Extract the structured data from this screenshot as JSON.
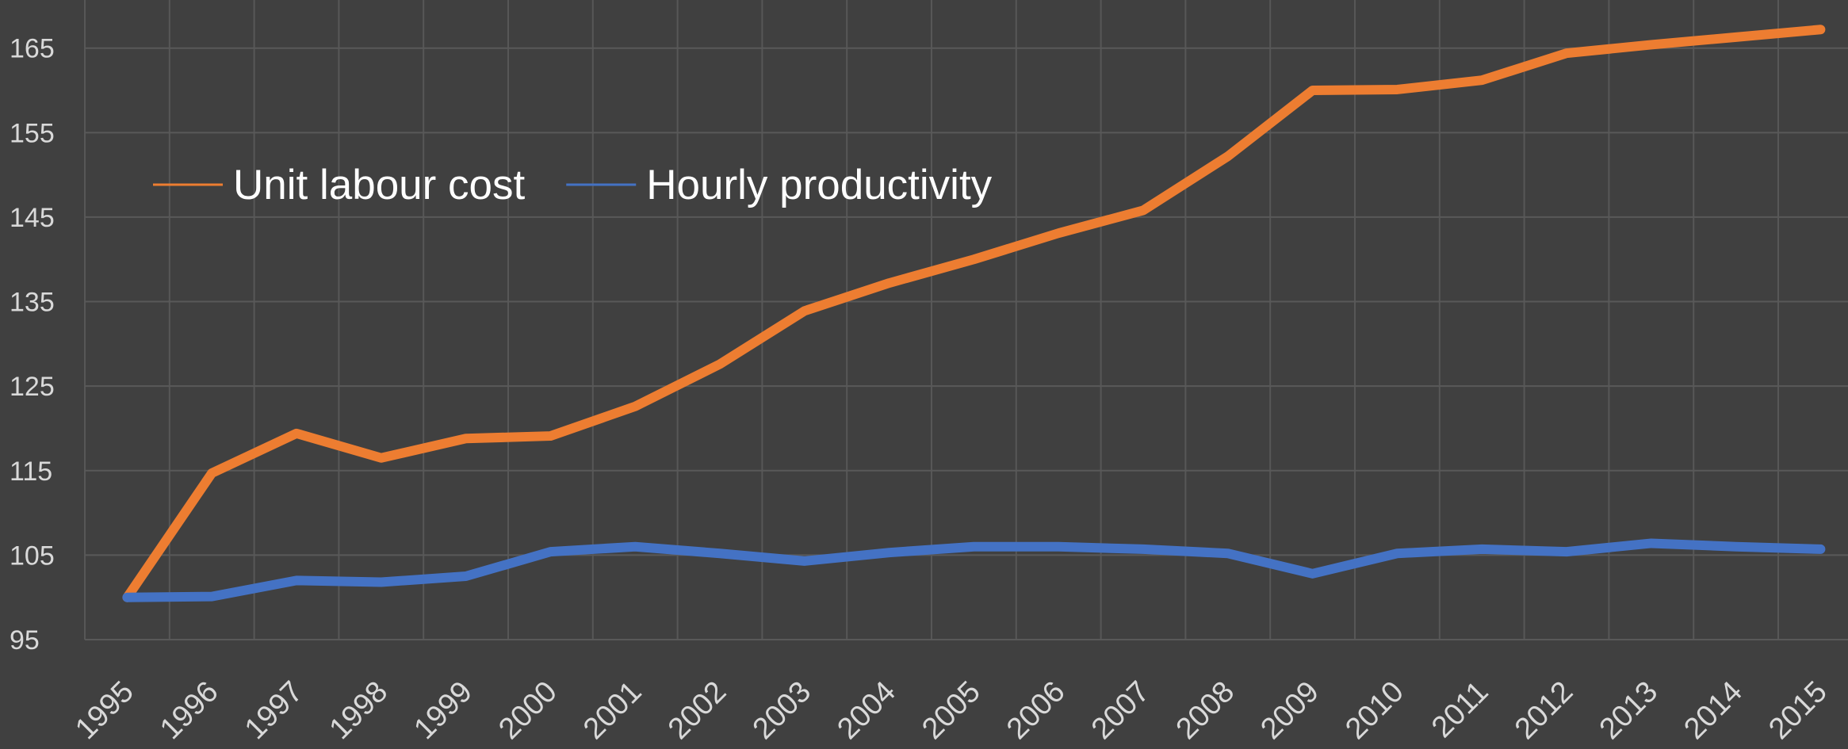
{
  "chart_data": {
    "type": "line",
    "categories": [
      "1995",
      "1996",
      "1997",
      "1998",
      "1999",
      "2000",
      "2001",
      "2002",
      "2003",
      "2004",
      "2005",
      "2006",
      "2007",
      "2008",
      "2009",
      "2010",
      "2011",
      "2012",
      "2013",
      "2014",
      "2015"
    ],
    "series": [
      {
        "name": "Unit labour cost",
        "color": "#ed7d31",
        "values": [
          100,
          114.7,
          119.4,
          116.5,
          118.8,
          119.1,
          122.6,
          127.6,
          133.9,
          137.2,
          140,
          143.1,
          145.8,
          152.2,
          160,
          160.1,
          161.2,
          164.4,
          165.4,
          166.3,
          167.2
        ]
      },
      {
        "name": "Hourly productivity",
        "color": "#4472c4",
        "values": [
          100,
          100.1,
          102,
          101.8,
          102.5,
          105.4,
          106,
          105.2,
          104.3,
          105.3,
          106,
          106,
          105.7,
          105.2,
          102.8,
          105.2,
          105.7,
          105.4,
          106.4,
          106,
          105.7
        ]
      }
    ],
    "ylim": [
      95,
      170
    ],
    "yticks": [
      95,
      105,
      115,
      125,
      135,
      145,
      155,
      165
    ],
    "grid": true,
    "legend": "top-left"
  }
}
